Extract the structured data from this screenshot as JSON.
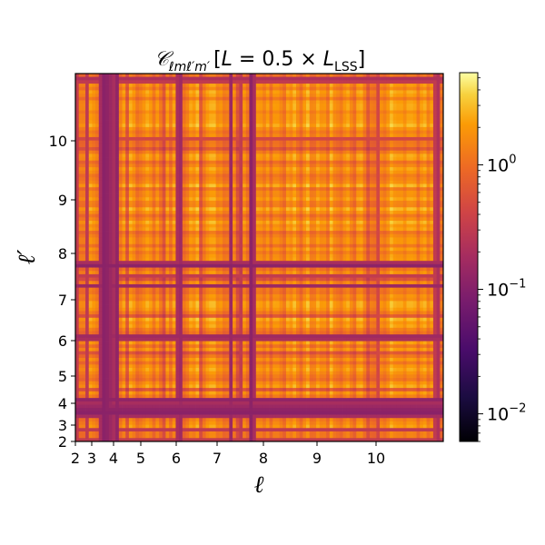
{
  "chart_data": {
    "type": "heatmap",
    "title": {
      "main": "𝒞",
      "sub": "ℓmℓ′m′",
      "bracket_open": "[",
      "L": "L",
      "expr": " = 0.5 × ",
      "L2": "L",
      "sub2": "LSS",
      "bracket_close": "]"
    },
    "xlabel": "ℓ",
    "ylabel": "ℓ′",
    "x_ticks": [
      "2",
      "3",
      "4",
      "5",
      "6",
      "7",
      "8",
      "9",
      "10"
    ],
    "y_ticks": [
      "2",
      "3",
      "4",
      "5",
      "6",
      "7",
      "8",
      "9",
      "10"
    ],
    "colorbar": {
      "scale": "log",
      "range": [
        0.006,
        5.5
      ],
      "colormap": "inferno",
      "ticks": [
        {
          "base": "10",
          "exp": "−2",
          "value": 0.01
        },
        {
          "base": "10",
          "exp": "−1",
          "value": 0.1
        },
        {
          "base": "10",
          "exp": "0",
          "value": 1
        }
      ]
    },
    "row_pattern_note": "",
    "grid": false
  }
}
